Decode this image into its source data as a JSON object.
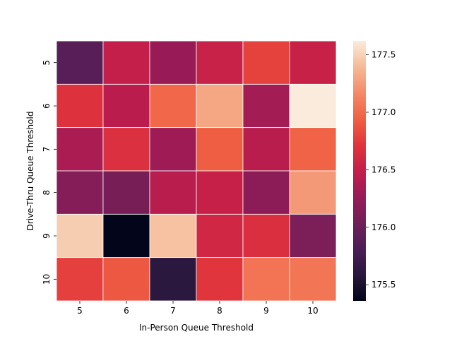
{
  "chart_data": {
    "type": "heatmap",
    "title": "",
    "xlabel": "In-Person Queue Threshold",
    "ylabel": "Drive-Thru Queue Threshold",
    "x_categories": [
      "5",
      "6",
      "7",
      "8",
      "9",
      "10"
    ],
    "y_categories": [
      "5",
      "6",
      "7",
      "8",
      "9",
      "10"
    ],
    "values": [
      [
        175.88,
        176.49,
        176.27,
        176.53,
        176.79,
        176.52
      ],
      [
        176.69,
        176.44,
        176.98,
        177.3,
        176.33,
        177.62
      ],
      [
        176.36,
        176.67,
        176.3,
        176.93,
        176.43,
        176.96
      ],
      [
        176.16,
        176.08,
        176.43,
        176.51,
        176.2,
        177.24
      ],
      [
        177.48,
        175.36,
        177.43,
        176.58,
        176.66,
        176.11
      ],
      [
        176.78,
        176.9,
        175.6,
        176.72,
        177.05,
        177.06
      ]
    ],
    "colorbar": {
      "colormap": "rocket",
      "range": [
        175.36,
        177.62
      ],
      "ticks": [
        175.5,
        176.0,
        176.5,
        177.0,
        177.5
      ],
      "tick_labels": [
        "175.5",
        "176.0",
        "176.5",
        "177.0",
        "177.5"
      ]
    },
    "grid": true,
    "cell_border_color": "#ffffff"
  }
}
